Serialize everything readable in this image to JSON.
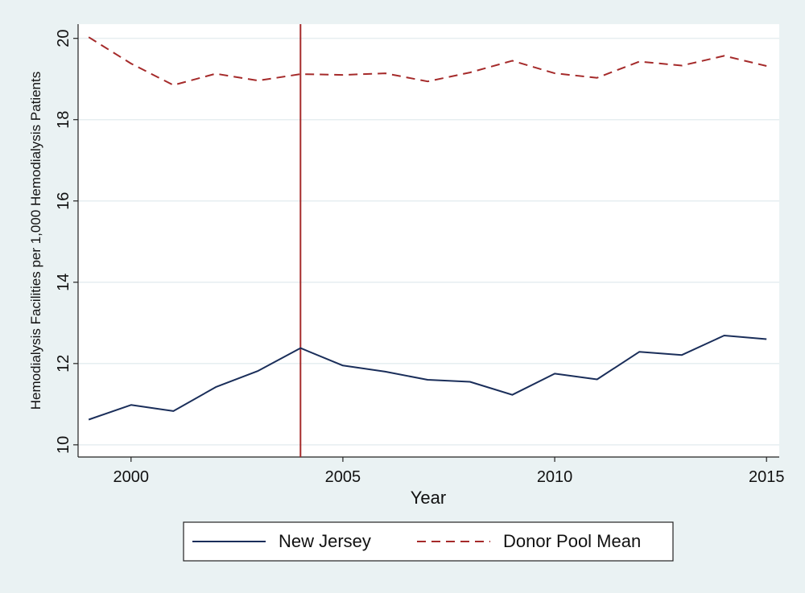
{
  "chart_data": {
    "type": "line",
    "title": "",
    "xlabel": "Year",
    "ylabel": "Hemodialysis Facilities per 1,000 Hemodialysis Patients",
    "xlim": [
      1998.75,
      2015.3
    ],
    "ylim": [
      9.7,
      20.35
    ],
    "x_ticks": [
      2000,
      2005,
      2010,
      2015
    ],
    "y_ticks": [
      10,
      12,
      14,
      16,
      18,
      20
    ],
    "grid": true,
    "legend_position": "bottom",
    "reference_line": {
      "x": 2004,
      "color": "#a52a2a"
    },
    "x": [
      1999,
      2000,
      2001,
      2002,
      2003,
      2004,
      2005,
      2006,
      2007,
      2008,
      2009,
      2010,
      2011,
      2012,
      2013,
      2014,
      2015
    ],
    "series": [
      {
        "name": "New Jersey",
        "color": "#1a2e5a",
        "style": "solid",
        "values": [
          10.62,
          10.98,
          10.83,
          11.42,
          11.82,
          12.38,
          11.95,
          11.8,
          11.6,
          11.55,
          11.23,
          11.75,
          11.61,
          12.29,
          12.21,
          12.69,
          12.6
        ]
      },
      {
        "name": "Donor Pool Mean",
        "color": "#a52a2a",
        "style": "dashed",
        "values": [
          20.03,
          19.38,
          18.85,
          19.13,
          18.96,
          19.12,
          19.1,
          19.14,
          18.94,
          19.16,
          19.45,
          19.14,
          19.03,
          19.43,
          19.33,
          19.57,
          19.32
        ]
      }
    ]
  }
}
